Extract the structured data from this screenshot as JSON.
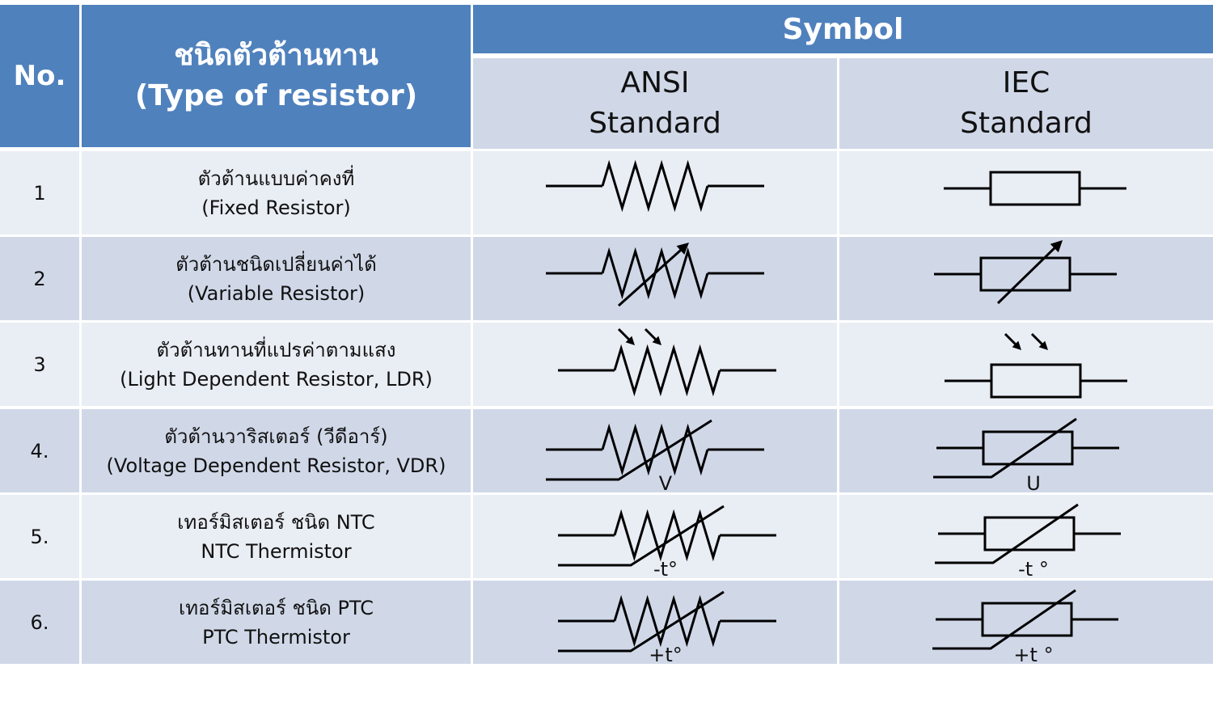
{
  "header": {
    "no": "No.",
    "type_th": "ชนิดตัวต้านทาน",
    "type_en": "(Type of resistor)",
    "symbol": "Symbol",
    "ansi": [
      "ANSI",
      "Standard"
    ],
    "iec": [
      "IEC",
      "Standard"
    ]
  },
  "rows": [
    {
      "no": "1",
      "th": "ตัวต้านแบบค่าคงที่",
      "en": "(Fixed Resistor)",
      "ansi_symbol": "fixed",
      "iec_symbol": "fixed",
      "ansi_label": "",
      "iec_label": ""
    },
    {
      "no": "2",
      "th": "ตัวต้านชนิดเปลี่ยนค่าได้",
      "en": "(Variable Resistor)",
      "ansi_symbol": "variable",
      "iec_symbol": "variable",
      "ansi_label": "",
      "iec_label": ""
    },
    {
      "no": "3",
      "th": "ตัวต้านทานที่แปรค่าตามแสง",
      "en": "(Light Dependent Resistor, LDR)",
      "ansi_symbol": "ldr",
      "iec_symbol": "ldr",
      "ansi_label": "",
      "iec_label": ""
    },
    {
      "no": "4.",
      "th": "ตัวต้านวาริสเตอร์ (วีดีอาร์)",
      "en": "(Voltage Dependent Resistor, VDR)",
      "ansi_symbol": "dependent",
      "iec_symbol": "dependent",
      "ansi_label": "V",
      "iec_label": "U"
    },
    {
      "no": "5.",
      "th": "เทอร์มิสเตอร์ ชนิด NTC",
      "en": "NTC Thermistor",
      "ansi_symbol": "dependent",
      "iec_symbol": "dependent",
      "ansi_label": "-t°",
      "iec_label": "-t °"
    },
    {
      "no": "6.",
      "th": "เทอร์มิสเตอร์ ชนิด PTC",
      "en": "PTC Thermistor",
      "ansi_symbol": "dependent",
      "iec_symbol": "dependent",
      "ansi_label": "+t°",
      "iec_label": "+t °"
    }
  ],
  "colors": {
    "header_blue": "#4f81bd",
    "row_light": "#e9edf4",
    "row_dark": "#d0d8e8",
    "grid_line": "#ffffff"
  }
}
